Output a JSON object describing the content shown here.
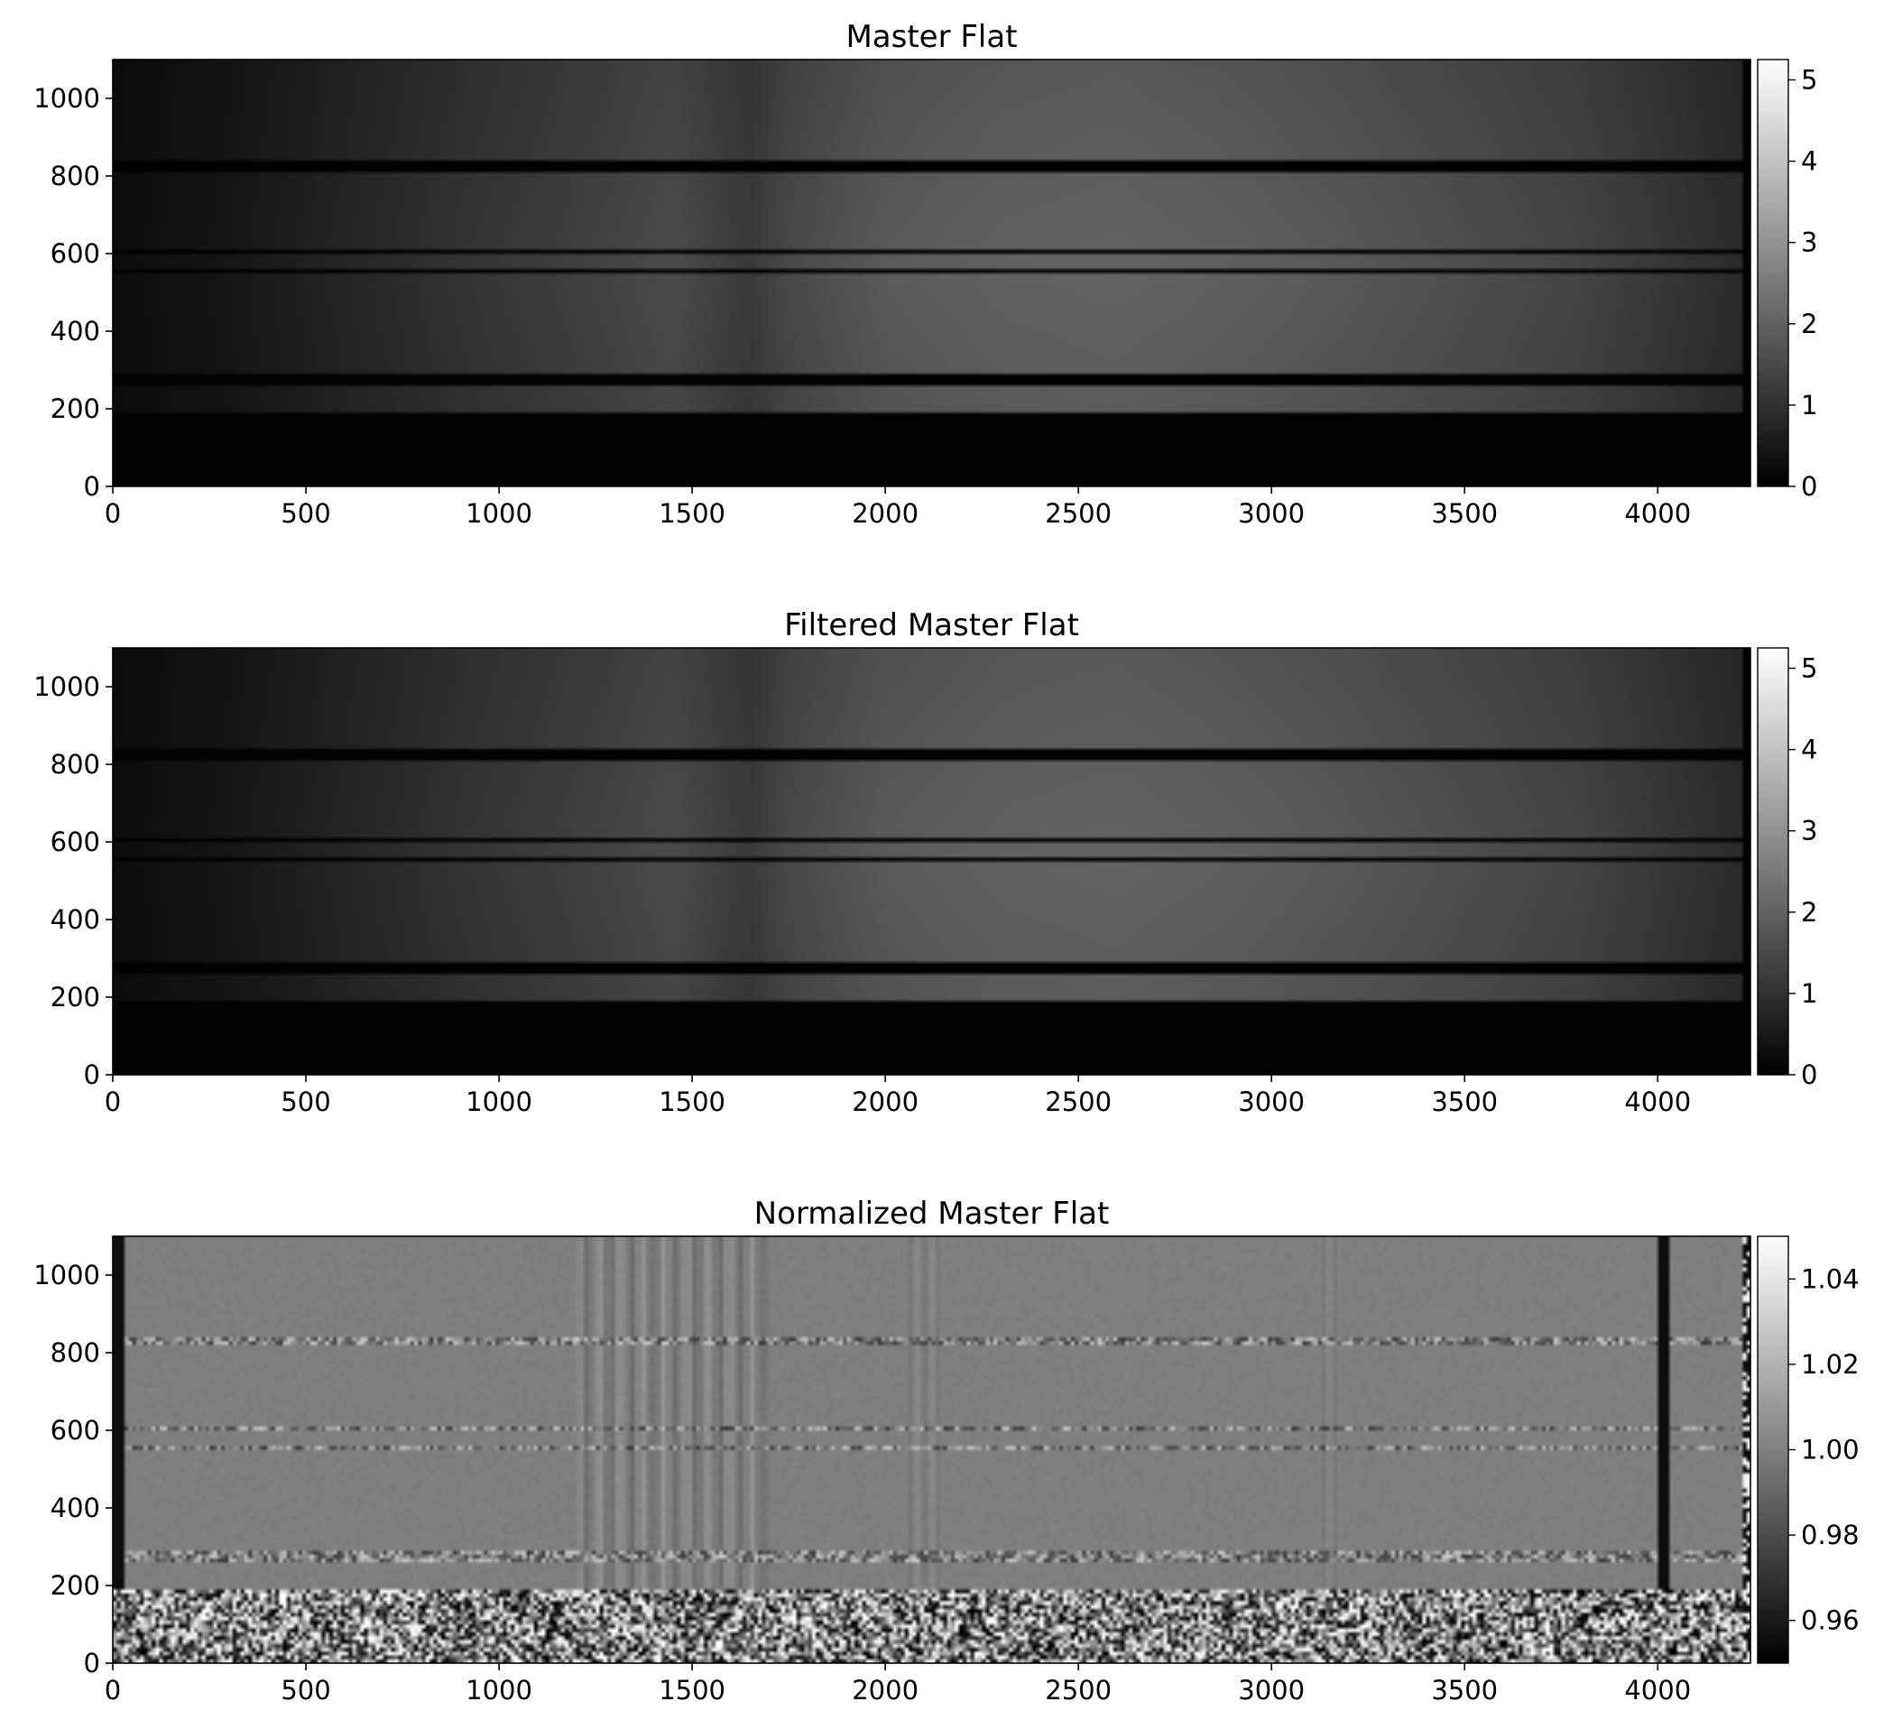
{
  "chart_data": [
    {
      "type": "heatmap",
      "title": "Master Flat",
      "xlabel": "",
      "ylabel": "",
      "xlim": [
        0,
        4240
      ],
      "ylim": [
        0,
        1100
      ],
      "xticks": [
        0,
        500,
        1000,
        1500,
        2000,
        2500,
        3000,
        3500,
        4000
      ],
      "yticks": [
        0,
        200,
        400,
        600,
        800,
        1000
      ],
      "colormap": "gray",
      "colorbar": {
        "vmin": 0,
        "vmax": 5.25,
        "ticks": [
          "0",
          "1",
          "2",
          "3",
          "4",
          "5"
        ]
      },
      "profile_x": [
        0,
        300,
        600,
        900,
        1200,
        1450,
        1560,
        1650,
        1750,
        2000,
        2300,
        2600,
        2900,
        3200,
        3500,
        3800,
        4000,
        4200
      ],
      "profile_level": [
        0.25,
        0.45,
        0.75,
        1.05,
        1.3,
        1.55,
        1.35,
        1.2,
        1.5,
        1.85,
        2.0,
        2.05,
        1.95,
        1.8,
        1.6,
        1.4,
        1.15,
        0.9
      ],
      "dark_bands": [
        [
          0,
          190
        ],
        [
          258,
          290
        ],
        [
          548,
          556
        ],
        [
          600,
          608
        ],
        [
          814,
          844
        ]
      ],
      "pixel_range": [
        0,
        1.1
      ]
    },
    {
      "type": "heatmap",
      "title": "Filtered Master Flat",
      "xlabel": "",
      "ylabel": "",
      "xlim": [
        0,
        4240
      ],
      "ylim": [
        0,
        1100
      ],
      "xticks": [
        0,
        500,
        1000,
        1500,
        2000,
        2500,
        3000,
        3500,
        4000
      ],
      "yticks": [
        0,
        200,
        400,
        600,
        800,
        1000
      ],
      "colormap": "gray",
      "colorbar": {
        "vmin": 0,
        "vmax": 5.25,
        "ticks": [
          "0",
          "1",
          "2",
          "3",
          "4",
          "5"
        ]
      },
      "profile_x": [
        0,
        300,
        600,
        900,
        1200,
        1450,
        1560,
        1650,
        1750,
        2000,
        2300,
        2600,
        2900,
        3200,
        3500,
        3800,
        4000,
        4200
      ],
      "profile_level": [
        0.25,
        0.45,
        0.75,
        1.05,
        1.3,
        1.55,
        1.35,
        1.2,
        1.5,
        1.85,
        2.0,
        2.05,
        1.95,
        1.8,
        1.6,
        1.4,
        1.15,
        0.9
      ],
      "dark_bands": [
        [
          0,
          190
        ],
        [
          258,
          290
        ],
        [
          548,
          556
        ],
        [
          600,
          608
        ],
        [
          814,
          844
        ]
      ],
      "pixel_range": [
        0,
        1.1
      ]
    },
    {
      "type": "heatmap",
      "title": "Normalized Master Flat",
      "xlabel": "",
      "ylabel": "",
      "xlim": [
        0,
        4240
      ],
      "ylim": [
        0,
        1100
      ],
      "xticks": [
        0,
        500,
        1000,
        1500,
        2000,
        2500,
        3000,
        3500,
        4000
      ],
      "yticks": [
        0,
        200,
        400,
        600,
        800,
        1000
      ],
      "colormap": "gray",
      "colorbar": {
        "vmin": 0.95,
        "vmax": 1.05,
        "ticks": [
          "0.96",
          "0.98",
          "1.00",
          "1.02",
          "1.04"
        ]
      },
      "base_level": 1.0,
      "noisy_bands": [
        [
          0,
          190
        ],
        [
          262,
          290
        ],
        [
          548,
          556
        ],
        [
          600,
          608
        ],
        [
          818,
          844
        ]
      ],
      "stripe_region": [
        1200,
        1700
      ],
      "dark_columns": [
        10,
        25,
        4010,
        4025
      ],
      "pixel_range": [
        0,
        1.1
      ]
    }
  ]
}
